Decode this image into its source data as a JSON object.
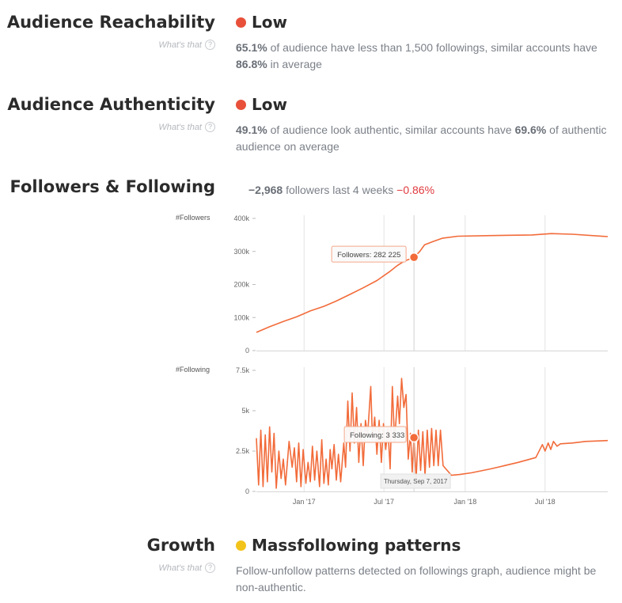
{
  "sections": {
    "reachability": {
      "title": "Audience Reachability",
      "whats_that": "What's that",
      "status": "Low",
      "status_color": "#e8503a",
      "pct": "65.1%",
      "text1": " of audience have less than 1,500 followings, similar accounts have ",
      "avg": "86.8%",
      "text2": " in average"
    },
    "authenticity": {
      "title": "Audience Authenticity",
      "whats_that": "What's that",
      "status": "Low",
      "status_color": "#e8503a",
      "pct": "49.1%",
      "text1": " of audience look authentic, similar accounts have ",
      "avg": "69.6%",
      "text2": " of authentic audience on average"
    },
    "followers_following": {
      "title": "Followers & Following",
      "change": "−2,968",
      "change_text": " followers last 4 weeks ",
      "change_pct": "−0.86%"
    },
    "growth": {
      "title": "Growth",
      "whats_that": "What's that",
      "status": "Massfollowing patterns",
      "status_color": "#f2c31a",
      "text": "Follow-unfollow patterns detected on followings graph, audience might be non-authentic."
    }
  },
  "chart_data": [
    {
      "type": "line",
      "ylabel": "#Followers",
      "ylim": [
        0,
        400000
      ],
      "yticks": [
        "400k",
        "300k",
        "200k",
        "100k",
        "0"
      ],
      "yticks_values": [
        400000,
        300000,
        200000,
        100000,
        0
      ],
      "xlim": [
        "2016-09-15",
        "2018-11-20"
      ],
      "series": [
        {
          "color": "#f26b3a",
          "points": [
            [
              "2016-09-15",
              55000
            ],
            [
              "2016-10-15",
              72000
            ],
            [
              "2016-11-15",
              88000
            ],
            [
              "2016-12-15",
              102000
            ],
            [
              "2017-01-15",
              120000
            ],
            [
              "2017-02-15",
              134000
            ],
            [
              "2017-03-15",
              150000
            ],
            [
              "2017-04-15",
              170000
            ],
            [
              "2017-05-15",
              190000
            ],
            [
              "2017-06-15",
              212000
            ],
            [
              "2017-07-15",
              240000
            ],
            [
              "2017-08-01",
              258000
            ],
            [
              "2017-08-15",
              270000
            ],
            [
              "2017-09-07",
              282225
            ],
            [
              "2017-09-20",
              300000
            ],
            [
              "2017-10-01",
              320000
            ],
            [
              "2017-10-20",
              330000
            ],
            [
              "2017-11-10",
              340000
            ],
            [
              "2017-12-15",
              346000
            ],
            [
              "2018-03-01",
              348000
            ],
            [
              "2018-06-01",
              350000
            ],
            [
              "2018-07-15",
              354000
            ],
            [
              "2018-09-01",
              352000
            ],
            [
              "2018-11-20",
              345000
            ]
          ]
        }
      ],
      "tooltip": {
        "label": "Followers: 282 225",
        "date": "2017-09-07",
        "value": 282225
      }
    },
    {
      "type": "line",
      "ylabel": "#Following",
      "ylim": [
        0,
        7500
      ],
      "yticks": [
        "7.5k",
        "5k",
        "2.5k",
        "0"
      ],
      "yticks_values": [
        7500,
        5000,
        2500,
        0
      ],
      "xlim": [
        "2016-09-15",
        "2018-11-20"
      ],
      "xticks": [
        "Jan '17",
        "Jul '17",
        "Jan '18",
        "Jul '18"
      ],
      "xticks_dates": [
        "2017-01-01",
        "2017-07-01",
        "2018-01-01",
        "2018-07-01"
      ],
      "series": [
        {
          "color": "#f26b3a",
          "points": [
            [
              "2016-09-15",
              3300
            ],
            [
              "2016-09-20",
              400
            ],
            [
              "2016-09-25",
              3800
            ],
            [
              "2016-09-30",
              300
            ],
            [
              "2016-10-05",
              3500
            ],
            [
              "2016-10-10",
              600
            ],
            [
              "2016-10-15",
              4000
            ],
            [
              "2016-10-20",
              1200
            ],
            [
              "2016-10-25",
              3600
            ],
            [
              "2016-10-30",
              200
            ],
            [
              "2016-11-05",
              2500
            ],
            [
              "2016-11-10",
              800
            ],
            [
              "2016-11-15",
              2000
            ],
            [
              "2016-11-20",
              400
            ],
            [
              "2016-11-28",
              3100
            ],
            [
              "2016-12-05",
              1500
            ],
            [
              "2016-12-10",
              2700
            ],
            [
              "2016-12-15",
              600
            ],
            [
              "2016-12-20",
              3000
            ],
            [
              "2016-12-25",
              300
            ],
            [
              "2016-12-30",
              2600
            ],
            [
              "2017-01-05",
              500
            ],
            [
              "2017-01-10",
              1800
            ],
            [
              "2017-01-15",
              600
            ],
            [
              "2017-01-20",
              2800
            ],
            [
              "2017-01-25",
              700
            ],
            [
              "2017-01-30",
              2500
            ],
            [
              "2017-02-05",
              300
            ],
            [
              "2017-02-10",
              3200
            ],
            [
              "2017-02-15",
              500
            ],
            [
              "2017-02-20",
              2000
            ],
            [
              "2017-02-25",
              400
            ],
            [
              "2017-03-01",
              2600
            ],
            [
              "2017-03-05",
              1400
            ],
            [
              "2017-03-10",
              2900
            ],
            [
              "2017-03-15",
              700
            ],
            [
              "2017-03-20",
              2300
            ],
            [
              "2017-03-25",
              600
            ],
            [
              "2017-04-01",
              3000
            ],
            [
              "2017-04-05",
              1500
            ],
            [
              "2017-04-10",
              5600
            ],
            [
              "2017-04-15",
              2500
            ],
            [
              "2017-04-20",
              6100
            ],
            [
              "2017-04-25",
              3000
            ],
            [
              "2017-04-30",
              5200
            ],
            [
              "2017-05-05",
              1800
            ],
            [
              "2017-05-10",
              4200
            ],
            [
              "2017-05-15",
              1600
            ],
            [
              "2017-05-20",
              4400
            ],
            [
              "2017-05-25",
              3500
            ],
            [
              "2017-06-01",
              6500
            ],
            [
              "2017-06-05",
              3200
            ],
            [
              "2017-06-10",
              4600
            ],
            [
              "2017-06-15",
              2300
            ],
            [
              "2017-06-20",
              4400
            ],
            [
              "2017-06-25",
              1800
            ],
            [
              "2017-06-30",
              4200
            ],
            [
              "2017-07-05",
              2600
            ],
            [
              "2017-07-10",
              3900
            ],
            [
              "2017-07-15",
              1400
            ],
            [
              "2017-07-20",
              6500
            ],
            [
              "2017-07-25",
              3100
            ],
            [
              "2017-08-01",
              5900
            ],
            [
              "2017-08-05",
              4200
            ],
            [
              "2017-08-10",
              7000
            ],
            [
              "2017-08-15",
              5200
            ],
            [
              "2017-08-20",
              6000
            ],
            [
              "2017-08-25",
              2000
            ],
            [
              "2017-08-30",
              3600
            ],
            [
              "2017-09-03",
              1200
            ],
            [
              "2017-09-07",
              3333
            ],
            [
              "2017-09-12",
              800
            ],
            [
              "2017-09-17",
              3800
            ],
            [
              "2017-09-22",
              1300
            ],
            [
              "2017-09-27",
              3700
            ],
            [
              "2017-10-02",
              1000
            ],
            [
              "2017-10-07",
              3800
            ],
            [
              "2017-10-12",
              1500
            ],
            [
              "2017-10-17",
              3900
            ],
            [
              "2017-10-22",
              1600
            ],
            [
              "2017-10-27",
              3800
            ],
            [
              "2017-11-01",
              1600
            ],
            [
              "2017-11-06",
              3800
            ],
            [
              "2017-11-12",
              1600
            ],
            [
              "2017-11-18",
              1400
            ],
            [
              "2017-12-01",
              1000
            ],
            [
              "2017-12-20",
              1050
            ],
            [
              "2018-01-15",
              1150
            ],
            [
              "2018-03-01",
              1400
            ],
            [
              "2018-05-01",
              1800
            ],
            [
              "2018-06-10",
              2100
            ],
            [
              "2018-06-25",
              2900
            ],
            [
              "2018-07-01",
              2500
            ],
            [
              "2018-07-08",
              3000
            ],
            [
              "2018-07-14",
              2600
            ],
            [
              "2018-07-20",
              3100
            ],
            [
              "2018-07-28",
              2800
            ],
            [
              "2018-08-05",
              2950
            ],
            [
              "2018-09-01",
              3000
            ],
            [
              "2018-10-01",
              3100
            ],
            [
              "2018-11-20",
              3150
            ]
          ]
        }
      ],
      "tooltip": {
        "label": "Following: 3 333",
        "date": "2017-09-07",
        "value": 3333,
        "date_label": "Thursday, Sep 7, 2017"
      }
    }
  ]
}
